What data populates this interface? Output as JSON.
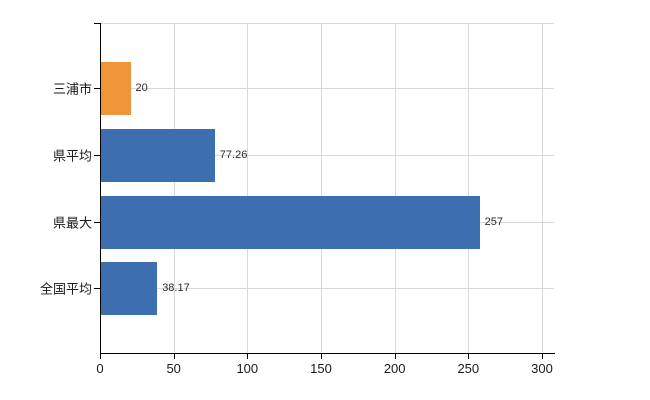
{
  "chart_data": {
    "type": "bar",
    "orientation": "horizontal",
    "title": "",
    "categories": [
      "三浦市",
      "県平均",
      "県最大",
      "全国平均"
    ],
    "values": [
      20,
      77.26,
      257,
      38.17
    ],
    "value_labels": [
      "20",
      "77.26",
      "257",
      "38.17"
    ],
    "bar_colors": [
      "#ef9438",
      "#3c6eb0",
      "#3c6eb0",
      "#3c6eb0"
    ],
    "x_ticks": [
      0,
      50,
      100,
      150,
      200,
      250,
      300
    ],
    "xlim": [
      0,
      308
    ],
    "grid": true,
    "legend": "none",
    "colors": {
      "highlight_bar": "#ef9438",
      "default_bar": "#3c6eb0",
      "grid": "#d9d9d9",
      "axis": "#000000",
      "tick_label": "#1a1a1a",
      "value_label": "#2b2b2b",
      "background": "#ffffff"
    }
  }
}
